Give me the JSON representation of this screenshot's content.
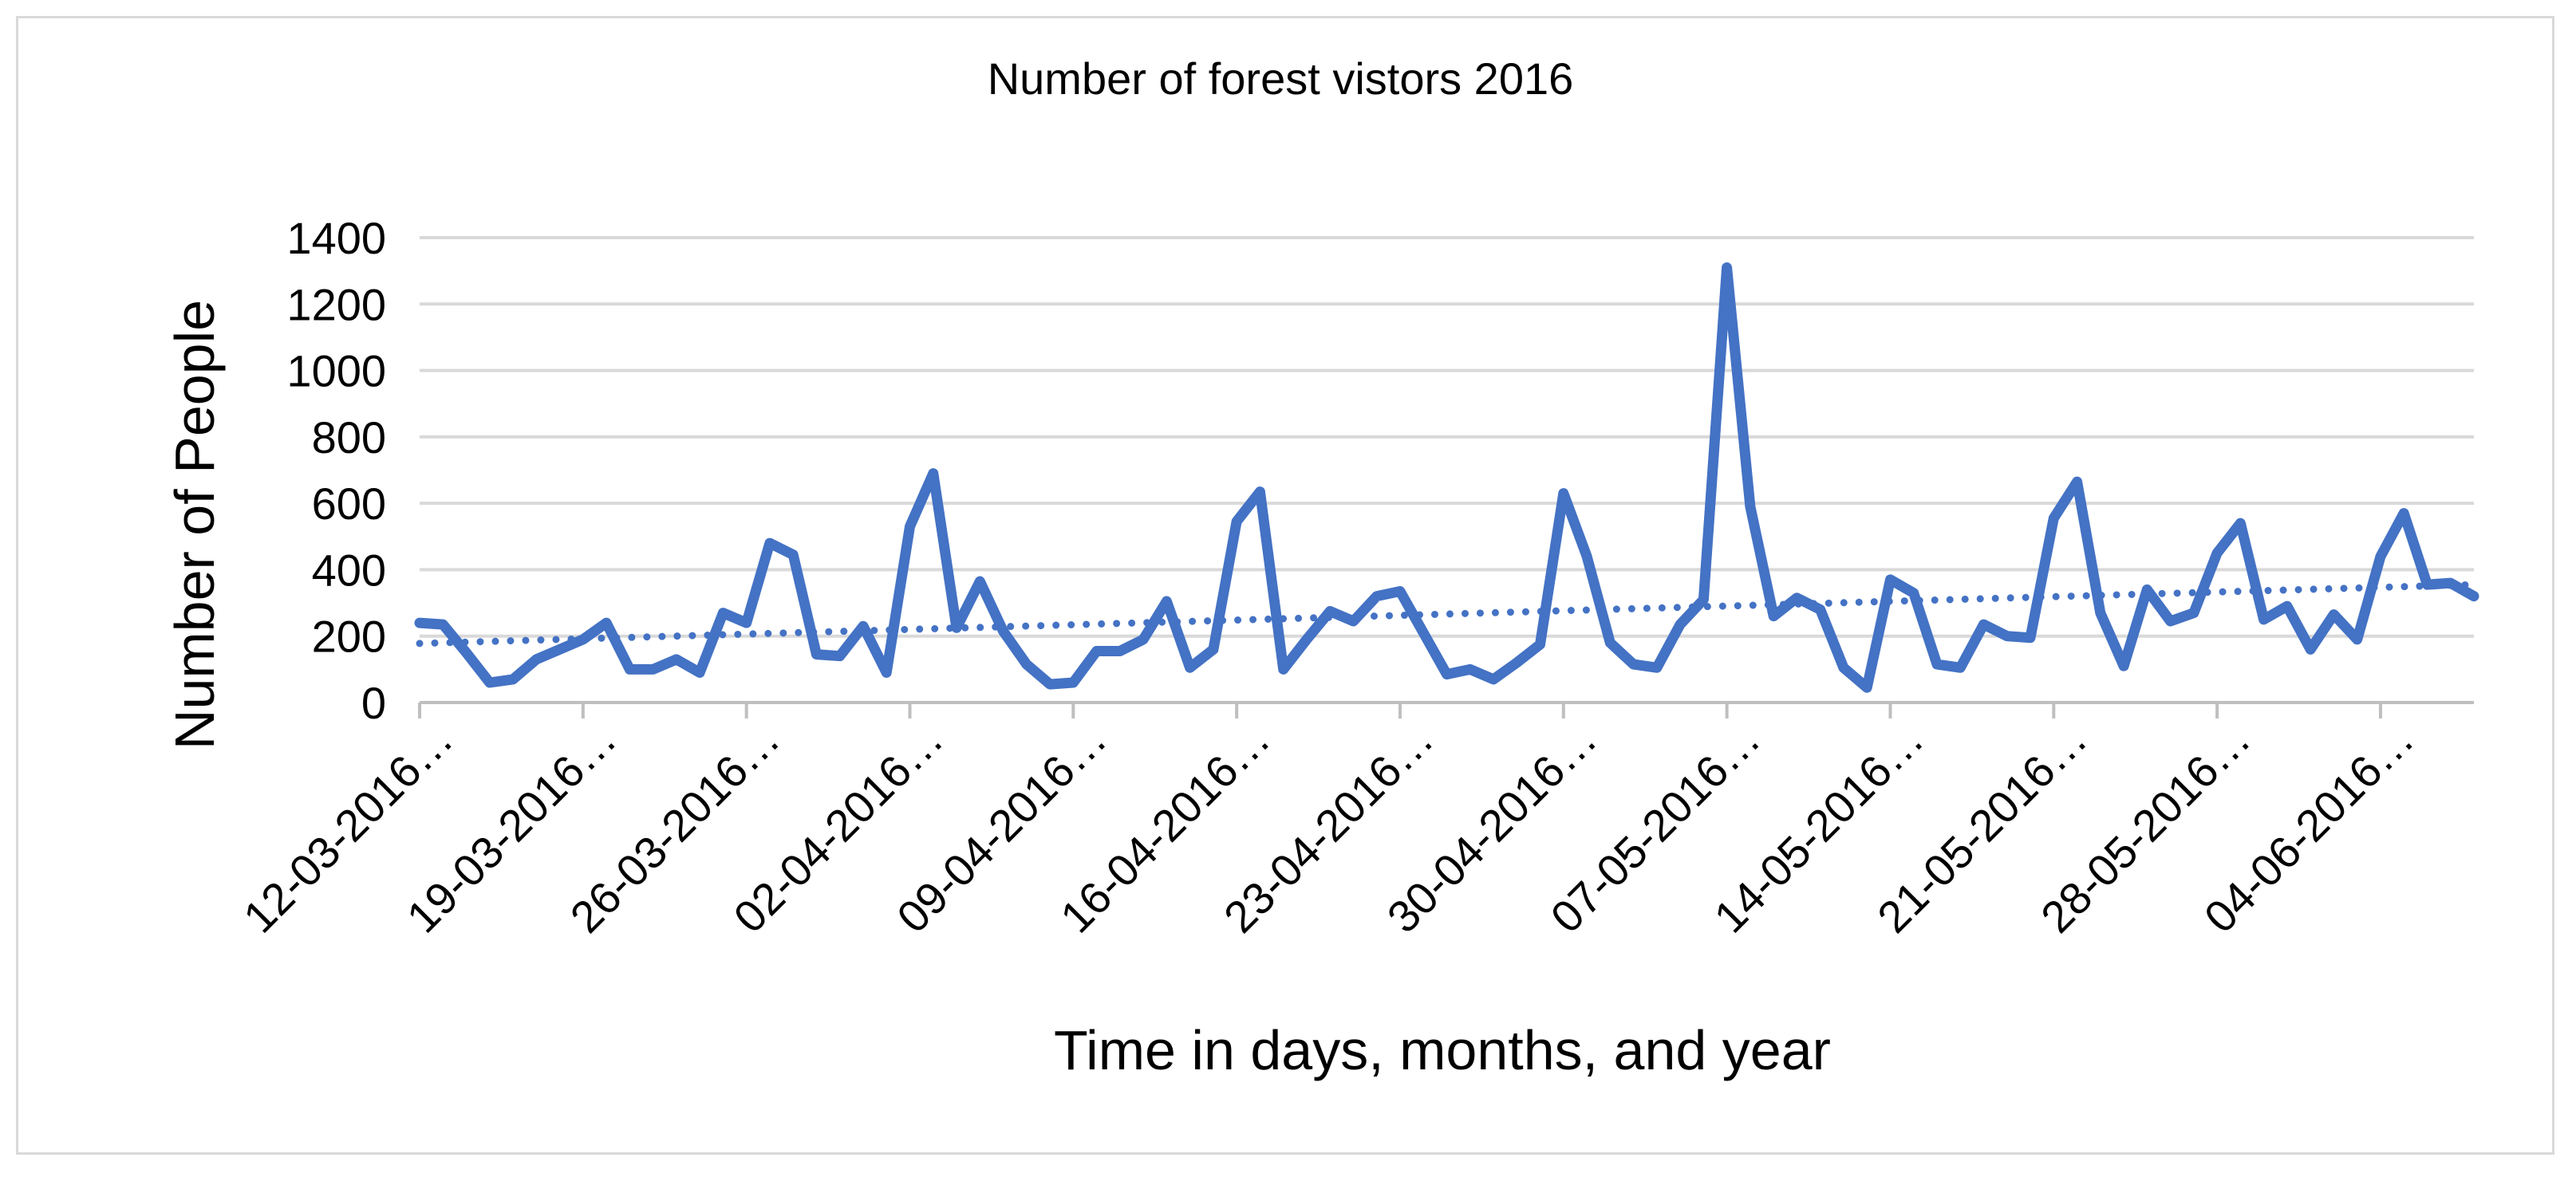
{
  "chart_data": {
    "type": "line",
    "title": "Number of forest vistors 2016",
    "xlabel": "Time in days, months, and year",
    "ylabel": "Number of People",
    "ylim": [
      0,
      1400
    ],
    "y_ticks": [
      0,
      200,
      400,
      600,
      800,
      1000,
      1200,
      1400
    ],
    "x_tick_labels": [
      "12-03-2016…",
      "19-03-2016…",
      "26-03-2016…",
      "02-04-2016…",
      "09-04-2016…",
      "16-04-2016…",
      "23-04-2016…",
      "30-04-2016…",
      "07-05-2016…",
      "14-05-2016…",
      "21-05-2016…",
      "28-05-2016…",
      "04-06-2016…"
    ],
    "grid": true,
    "legend": "none",
    "colors": {
      "series": "#4472c4",
      "grid": "#d9d9d9",
      "axis": "#bfbfbf"
    },
    "series": [
      {
        "values": [
          240,
          235,
          150,
          60,
          70,
          130,
          160,
          190,
          240,
          100,
          100,
          130,
          90,
          270,
          240,
          480,
          445,
          145,
          140,
          230,
          90,
          530,
          690,
          225,
          365,
          215,
          115,
          55,
          60,
          155,
          155,
          190,
          305,
          105,
          160,
          545,
          635,
          100,
          190,
          275,
          245,
          320,
          335,
          210,
          85,
          100,
          70,
          120,
          175,
          630,
          440,
          180,
          115,
          105,
          235,
          310,
          1310,
          590,
          260,
          315,
          280,
          105,
          45,
          370,
          330,
          115,
          105,
          235,
          200,
          195,
          555,
          665,
          270,
          110,
          340,
          245,
          270,
          450,
          540,
          250,
          290,
          160,
          265,
          190,
          440,
          570,
          355,
          360,
          320
        ]
      }
    ],
    "trendline": {
      "type": "linear",
      "start": 178,
      "end": 355
    }
  }
}
